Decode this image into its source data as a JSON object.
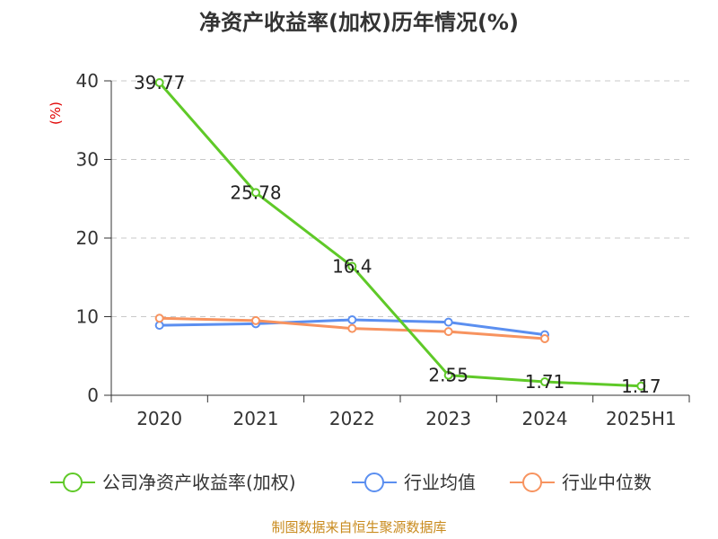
{
  "title": "净资产收益率(加权)历年情况(%)",
  "unit": "(%)",
  "source": "制图数据来自恒生聚源数据库",
  "chart_data": {
    "type": "line",
    "title": "净资产收益率(加权)历年情况(%)",
    "ylabel": "(%)",
    "xlabel": "",
    "categories": [
      "2020",
      "2021",
      "2022",
      "2023",
      "2024",
      "2025H1"
    ],
    "ylim": [
      0,
      40
    ],
    "yticks": [
      0,
      10,
      20,
      30,
      40
    ],
    "grid": "horizontal dashed",
    "legend": "bottom",
    "series": [
      {
        "name": "公司净资产收益率(加权)",
        "color": "#5fc928",
        "values": [
          39.77,
          25.78,
          16.4,
          2.55,
          1.71,
          1.17
        ],
        "labels": [
          "39.77",
          "25.78",
          "16.4",
          "2.55",
          "1.71",
          "1.17"
        ]
      },
      {
        "name": "行业均值",
        "color": "#5b8ff0",
        "values": [
          8.9,
          9.1,
          9.6,
          9.3,
          7.7,
          null
        ]
      },
      {
        "name": "行业中位数",
        "color": "#f7935f",
        "values": [
          9.8,
          9.5,
          8.5,
          8.1,
          7.2,
          null
        ]
      }
    ]
  }
}
